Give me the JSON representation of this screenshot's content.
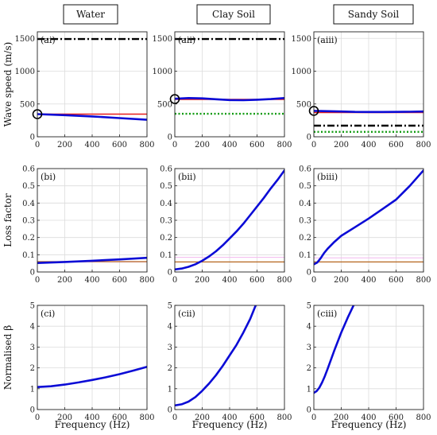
{
  "columns": [
    "Water",
    "Clay Soil",
    "Sandy Soil"
  ],
  "colors": {
    "blue": "#0b0bd6",
    "red": "#e81c1c",
    "orange": "#b5651d",
    "pink": "#f2b8ee",
    "green": "#129b12",
    "black": "#000000",
    "grid": "#dcdcdc"
  },
  "x_axis_label": "Frequency (Hz)",
  "row_labels": [
    "Wave speed (m/s)",
    "Loss factor",
    "Normalised β"
  ],
  "chart_data": [
    {
      "id": "ai",
      "panel_label": "(ai)",
      "type": "line",
      "xlim": [
        0,
        800
      ],
      "ylim": [
        0,
        1600
      ],
      "xticks": [
        0,
        200,
        400,
        600,
        800
      ],
      "yticks": [
        0,
        500,
        1000,
        1500
      ],
      "series": [
        {
          "style": "black-dashdot",
          "x": [
            0,
            800
          ],
          "y": [
            1490,
            1490
          ]
        },
        {
          "style": "red",
          "x": [
            0,
            800
          ],
          "y": [
            345,
            345
          ]
        },
        {
          "style": "blue",
          "x": [
            0,
            200,
            400,
            600,
            800
          ],
          "y": [
            345,
            330,
            310,
            285,
            260
          ]
        }
      ],
      "markers": [
        {
          "x": 0,
          "y": 345
        }
      ]
    },
    {
      "id": "aii",
      "panel_label": "(aii)",
      "type": "line",
      "xlim": [
        0,
        800
      ],
      "ylim": [
        0,
        1600
      ],
      "xticks": [
        0,
        200,
        400,
        600,
        800
      ],
      "yticks": [
        0,
        500,
        1000,
        1500
      ],
      "series": [
        {
          "style": "black-dashdot",
          "x": [
            0,
            800
          ],
          "y": [
            1490,
            1490
          ]
        },
        {
          "style": "green-dotted",
          "x": [
            0,
            800
          ],
          "y": [
            350,
            350
          ]
        },
        {
          "style": "red",
          "x": [
            0,
            800
          ],
          "y": [
            570,
            570
          ]
        },
        {
          "style": "blue",
          "x": [
            0,
            100,
            200,
            300,
            400,
            500,
            600,
            700,
            800
          ],
          "y": [
            580,
            590,
            585,
            572,
            560,
            558,
            565,
            575,
            590
          ]
        }
      ],
      "markers": [
        {
          "x": 0,
          "y": 575
        }
      ]
    },
    {
      "id": "aiii",
      "panel_label": "(aiii)",
      "type": "line",
      "xlim": [
        0,
        800
      ],
      "ylim": [
        0,
        1600
      ],
      "xticks": [
        0,
        200,
        400,
        600,
        800
      ],
      "yticks": [
        0,
        500,
        1000,
        1500
      ],
      "series": [
        {
          "style": "black-dashdot",
          "x": [
            0,
            800
          ],
          "y": [
            170,
            170
          ]
        },
        {
          "style": "green-dotted",
          "x": [
            0,
            800
          ],
          "y": [
            75,
            75
          ]
        },
        {
          "style": "red",
          "x": [
            0,
            800
          ],
          "y": [
            370,
            370
          ]
        },
        {
          "style": "blue",
          "x": [
            0,
            100,
            200,
            300,
            400,
            500,
            600,
            700,
            800
          ],
          "y": [
            395,
            390,
            385,
            380,
            378,
            378,
            380,
            382,
            385
          ]
        }
      ],
      "markers": [
        {
          "x": 0,
          "y": 395
        }
      ]
    },
    {
      "id": "bi",
      "panel_label": "(bi)",
      "type": "line",
      "xlim": [
        0,
        800
      ],
      "ylim": [
        0,
        0.6
      ],
      "xticks": [
        0,
        200,
        400,
        600,
        800
      ],
      "yticks": [
        0,
        0.1,
        0.2,
        0.3,
        0.4,
        0.5,
        0.6
      ],
      "series": [
        {
          "style": "pink",
          "x": [
            0,
            800
          ],
          "y": [
            0.058,
            0.058
          ]
        },
        {
          "style": "orange",
          "x": [
            0,
            800
          ],
          "y": [
            0.06,
            0.06
          ]
        },
        {
          "style": "blue",
          "x": [
            0,
            200,
            400,
            600,
            800
          ],
          "y": [
            0.052,
            0.058,
            0.065,
            0.073,
            0.082
          ]
        }
      ]
    },
    {
      "id": "bii",
      "panel_label": "(bii)",
      "type": "line",
      "xlim": [
        0,
        800
      ],
      "ylim": [
        0,
        0.6
      ],
      "xticks": [
        0,
        200,
        400,
        600,
        800
      ],
      "yticks": [
        0,
        0.1,
        0.2,
        0.3,
        0.4,
        0.5,
        0.6
      ],
      "series": [
        {
          "style": "pink",
          "x": [
            0,
            800
          ],
          "y": [
            0.085,
            0.085
          ]
        },
        {
          "style": "orange",
          "x": [
            0,
            800
          ],
          "y": [
            0.058,
            0.058
          ]
        },
        {
          "style": "blue",
          "x": [
            0,
            50,
            100,
            150,
            200,
            250,
            300,
            350,
            400,
            450,
            500,
            550,
            600,
            650,
            700,
            750,
            800
          ],
          "y": [
            0.015,
            0.02,
            0.03,
            0.045,
            0.065,
            0.09,
            0.12,
            0.155,
            0.195,
            0.235,
            0.28,
            0.33,
            0.38,
            0.43,
            0.485,
            0.535,
            0.59
          ]
        }
      ]
    },
    {
      "id": "biii",
      "panel_label": "(biii)",
      "type": "line",
      "xlim": [
        0,
        800
      ],
      "ylim": [
        0,
        0.6
      ],
      "xticks": [
        0,
        200,
        400,
        600,
        800
      ],
      "yticks": [
        0,
        0.1,
        0.2,
        0.3,
        0.4,
        0.5,
        0.6
      ],
      "series": [
        {
          "style": "pink",
          "x": [
            0,
            800
          ],
          "y": [
            0.082,
            0.082
          ]
        },
        {
          "style": "orange",
          "x": [
            0,
            800
          ],
          "y": [
            0.058,
            0.058
          ]
        },
        {
          "style": "blue",
          "x": [
            0,
            25,
            50,
            75,
            100,
            150,
            200,
            300,
            400,
            500,
            600,
            700,
            800
          ],
          "y": [
            0.045,
            0.055,
            0.08,
            0.11,
            0.135,
            0.175,
            0.21,
            0.26,
            0.31,
            0.365,
            0.42,
            0.5,
            0.59
          ]
        }
      ]
    },
    {
      "id": "ci",
      "panel_label": "(ci)",
      "type": "line",
      "xlim": [
        0,
        800
      ],
      "ylim": [
        0,
        5
      ],
      "xticks": [
        0,
        200,
        400,
        600,
        800
      ],
      "yticks": [
        0,
        1,
        2,
        3,
        4,
        5
      ],
      "series": [
        {
          "style": "blue",
          "x": [
            0,
            100,
            200,
            300,
            400,
            500,
            600,
            700,
            800
          ],
          "y": [
            1.08,
            1.12,
            1.2,
            1.3,
            1.42,
            1.55,
            1.7,
            1.87,
            2.05
          ]
        }
      ]
    },
    {
      "id": "cii",
      "panel_label": "(cii)",
      "type": "line",
      "xlim": [
        0,
        800
      ],
      "ylim": [
        0,
        5
      ],
      "xticks": [
        0,
        200,
        400,
        600,
        800
      ],
      "yticks": [
        0,
        1,
        2,
        3,
        4,
        5
      ],
      "series": [
        {
          "style": "blue",
          "x": [
            0,
            50,
            100,
            150,
            200,
            250,
            300,
            350,
            400,
            450,
            500,
            550,
            590
          ],
          "y": [
            0.2,
            0.25,
            0.38,
            0.6,
            0.9,
            1.25,
            1.65,
            2.1,
            2.6,
            3.1,
            3.7,
            4.35,
            5.0
          ]
        }
      ]
    },
    {
      "id": "ciii",
      "panel_label": "(ciii)",
      "type": "line",
      "xlim": [
        0,
        800
      ],
      "ylim": [
        0,
        5
      ],
      "xticks": [
        0,
        200,
        400,
        600,
        800
      ],
      "yticks": [
        0,
        1,
        2,
        3,
        4,
        5
      ],
      "series": [
        {
          "style": "blue",
          "x": [
            0,
            20,
            40,
            60,
            80,
            100,
            150,
            200,
            250,
            290
          ],
          "y": [
            0.8,
            0.88,
            1.05,
            1.3,
            1.6,
            1.95,
            2.85,
            3.7,
            4.45,
            5.0
          ]
        }
      ]
    }
  ]
}
